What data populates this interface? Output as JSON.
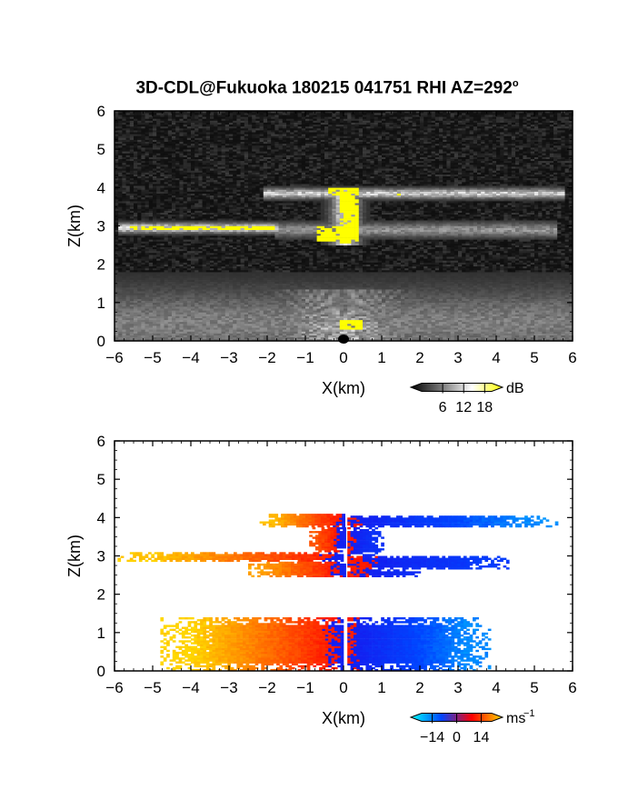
{
  "title": "3D-CDL@Fukuoka 180215 041751 RHI AZ=292",
  "title_sup": "o",
  "chart_data": [
    {
      "type": "heatmap",
      "variable": "reflectivity",
      "xlabel": "X(km)",
      "ylabel": "Z(km)",
      "xlim": [
        -6,
        6
      ],
      "ylim": [
        0,
        6
      ],
      "x_ticks": [
        "−6",
        "−5",
        "−4",
        "−3",
        "−2",
        "−1",
        "0",
        "1",
        "2",
        "3",
        "4",
        "5",
        "6"
      ],
      "y_ticks": [
        "0",
        "1",
        "2",
        "3",
        "4",
        "5",
        "6"
      ],
      "colorbar": {
        "unit": "dB",
        "ticks": [
          "6",
          "12",
          "18"
        ],
        "range": [
          0,
          20
        ],
        "colors": [
          "#000000",
          "#ffffff",
          "#ffff00"
        ]
      },
      "background": "#111111",
      "features": [
        {
          "kind": "layer",
          "x0": -2.1,
          "x1": 5.8,
          "z": 3.85,
          "thickness": 0.12,
          "intensity": 0.85
        },
        {
          "kind": "layer",
          "x0": -5.9,
          "x1": -1.7,
          "z": 2.95,
          "thickness": 0.12,
          "intensity": 0.95
        },
        {
          "kind": "layer",
          "x0": -1.8,
          "x1": 5.6,
          "z": 2.9,
          "thickness": 0.18,
          "intensity": 0.55
        },
        {
          "kind": "layer",
          "x0": -6.0,
          "x1": 6.0,
          "z": 0.45,
          "thickness": 0.9,
          "intensity": 0.45
        },
        {
          "kind": "column",
          "x": 0.05,
          "z0": 2.5,
          "z1": 4.0,
          "width": 0.35,
          "intensity": 1.0
        },
        {
          "kind": "fan",
          "x": 0.0,
          "z": 0.0,
          "radius": 3.0,
          "intensity": 0.9
        }
      ],
      "yellow_regions": [
        {
          "x0": -5.6,
          "x1": -1.8,
          "z0": 2.88,
          "z1": 3.02
        },
        {
          "x0": -0.1,
          "x1": 0.35,
          "z0": 2.55,
          "z1": 4.0
        },
        {
          "x0": -0.7,
          "x1": 0.4,
          "z0": 2.6,
          "z1": 3.0
        },
        {
          "x0": -0.45,
          "x1": 0.2,
          "z0": 3.8,
          "z1": 3.98
        },
        {
          "x0": 1.35,
          "x1": 1.5,
          "z0": 3.82,
          "z1": 3.92
        },
        {
          "x0": -0.15,
          "x1": 0.5,
          "z0": 0.3,
          "z1": 0.55
        }
      ]
    },
    {
      "type": "heatmap",
      "variable": "radial_velocity",
      "xlabel": "X(km)",
      "ylabel": "Z(km)",
      "xlim": [
        -6,
        6
      ],
      "ylim": [
        0,
        6
      ],
      "x_ticks": [
        "−6",
        "−5",
        "−4",
        "−3",
        "−2",
        "−1",
        "0",
        "1",
        "2",
        "3",
        "4",
        "5",
        "6"
      ],
      "y_ticks": [
        "0",
        "1",
        "2",
        "3",
        "4",
        "5",
        "6"
      ],
      "colorbar": {
        "unit": "ms",
        "unit_exp": "−1",
        "ticks": [
          "−14",
          "0",
          "14"
        ],
        "range": [
          -20,
          20
        ],
        "colors": [
          "#00ffff",
          "#0044ff",
          "#ff0000",
          "#ffd700"
        ]
      },
      "regions": [
        {
          "x0": -2.2,
          "x1": 0.0,
          "z0": 3.75,
          "z1": 4.1,
          "v_at_zero": -1,
          "v_far": 12
        },
        {
          "x0": 0.1,
          "x1": 5.6,
          "z0": 3.75,
          "z1": 4.05,
          "v_at_zero": 1,
          "v_far": -13
        },
        {
          "x0": -6.0,
          "x1": 0.0,
          "z0": 2.85,
          "z1": 3.1,
          "v_at_zero": -1,
          "v_far": 13
        },
        {
          "x0": -2.5,
          "x1": 0.0,
          "z0": 2.45,
          "z1": 2.85,
          "v_at_zero": -1,
          "v_far": 10
        },
        {
          "x0": -0.9,
          "x1": 0.0,
          "z0": 3.1,
          "z1": 3.75,
          "v_at_zero": -1,
          "v_far": 5
        },
        {
          "x0": 0.1,
          "x1": 4.3,
          "z0": 2.65,
          "z1": 3.0,
          "v_at_zero": 1,
          "v_far": -6
        },
        {
          "x0": 0.1,
          "x1": 1.0,
          "z0": 3.0,
          "z1": 3.75,
          "v_at_zero": 1,
          "v_far": -4
        },
        {
          "x0": 0.1,
          "x1": 2.0,
          "z0": 2.45,
          "z1": 2.65,
          "v_at_zero": 1,
          "v_far": -3
        },
        {
          "x0": -4.8,
          "x1": 0.0,
          "z0": 0.0,
          "z1": 1.4,
          "v_at_zero": -1,
          "v_far": 14
        },
        {
          "x0": 0.1,
          "x1": 3.8,
          "z0": 0.0,
          "z1": 1.4,
          "v_at_zero": 1,
          "v_far": -13
        }
      ]
    }
  ]
}
